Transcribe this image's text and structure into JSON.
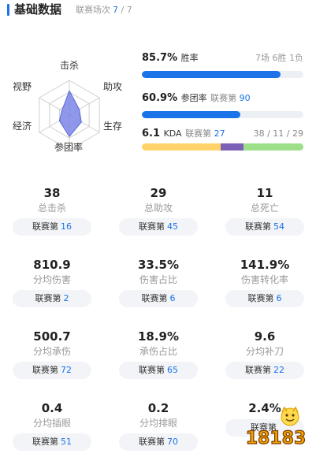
{
  "header": {
    "title": "基础数据",
    "games_label": "联赛场次",
    "games_played": "7",
    "games_total": "/ 7"
  },
  "radar": {
    "axes": [
      "击杀",
      "助攻",
      "生存",
      "参团率",
      "经济",
      "视野"
    ],
    "values": [
      0.7,
      0.33,
      0.4,
      0.62,
      0.33,
      0.25
    ],
    "fill_color": "#7b86e8",
    "grid_color": "#cfcfcf"
  },
  "metrics": {
    "winrate": {
      "value": "85.7%",
      "label": "胜率",
      "record": "7场 6胜 1负",
      "fraction": 0.857
    },
    "participation": {
      "value": "60.9%",
      "label": "参团率",
      "rank_label": "联赛第",
      "rank": "90",
      "fraction": 0.609
    },
    "kda": {
      "value": "6.1",
      "label": "KDA",
      "rank_label": "联赛第",
      "rank": "27",
      "kda_line": "38 / 11 / 29",
      "segments": [
        {
          "fraction": 0.487,
          "color": "#ffd26a"
        },
        {
          "fraction": 0.141,
          "color": "#7c5fb7"
        },
        {
          "fraction": 0.372,
          "color": "#9ee08a"
        }
      ]
    },
    "accent_color": "#1a73e8"
  },
  "stats": [
    {
      "value": "38",
      "label": "总击杀",
      "rank_label": "联赛第",
      "rank": "16"
    },
    {
      "value": "29",
      "label": "总助攻",
      "rank_label": "联赛第",
      "rank": "45"
    },
    {
      "value": "11",
      "label": "总死亡",
      "rank_label": "联赛第",
      "rank": "54"
    },
    {
      "value": "810.9",
      "label": "分均伤害",
      "rank_label": "联赛第",
      "rank": "2"
    },
    {
      "value": "33.5%",
      "label": "伤害占比",
      "rank_label": "联赛第",
      "rank": "6"
    },
    {
      "value": "141.9%",
      "label": "伤害转化率",
      "rank_label": "联赛第",
      "rank": "6"
    },
    {
      "value": "500.7",
      "label": "分均承伤",
      "rank_label": "联赛第",
      "rank": "72"
    },
    {
      "value": "18.9%",
      "label": "承伤占比",
      "rank_label": "联赛第",
      "rank": "65"
    },
    {
      "value": "9.6",
      "label": "分均补刀",
      "rank_label": "联赛第",
      "rank": "22"
    },
    {
      "value": "0.4",
      "label": "分均插眼",
      "rank_label": "联赛第",
      "rank": "51"
    },
    {
      "value": "0.2",
      "label": "分均排眼",
      "rank_label": "联赛第",
      "rank": "70"
    },
    {
      "value": "2.4%",
      "label": "",
      "rank_label": "联赛第",
      "rank": ""
    }
  ],
  "watermark": {
    "text": "18183"
  }
}
